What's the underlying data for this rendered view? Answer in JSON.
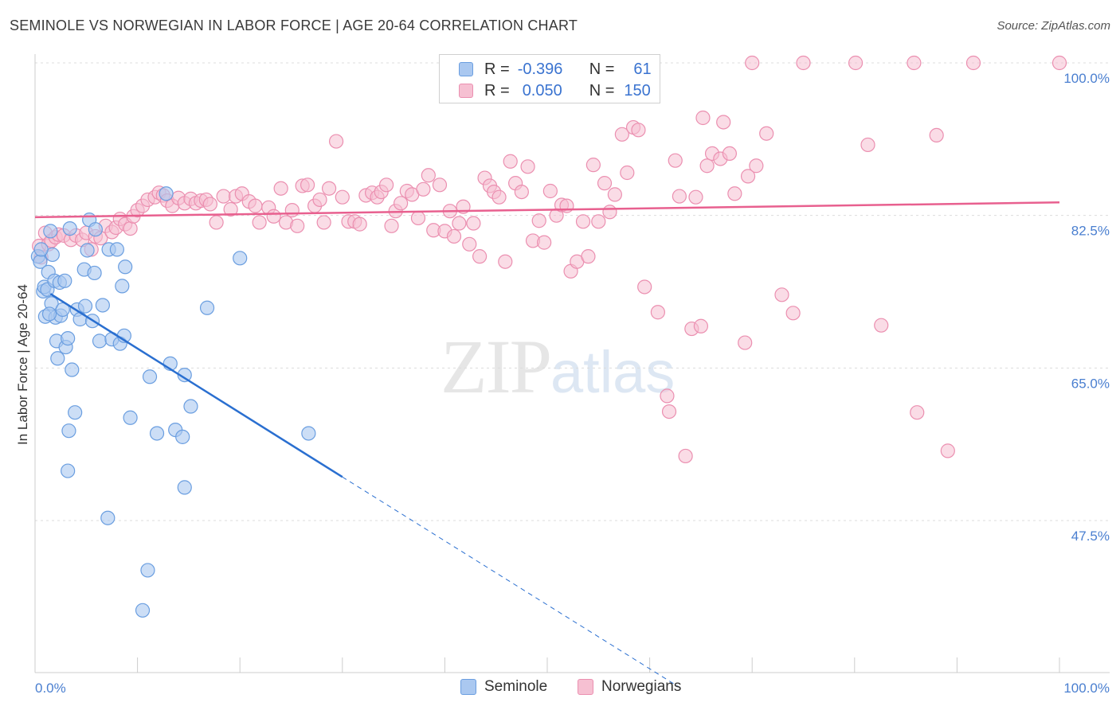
{
  "title": "SEMINOLE VS NORWEGIAN IN LABOR FORCE | AGE 20-64 CORRELATION CHART",
  "source": "Source: ZipAtlas.com",
  "watermark": {
    "zip": "ZIP",
    "atlas": "atlas"
  },
  "legend": {
    "r_label": "R =",
    "n_label": "N =",
    "rows": [
      {
        "series": "Seminole",
        "r": "-0.396",
        "n": "61"
      },
      {
        "series": "Norwegians",
        "r": "0.050",
        "n": "150"
      }
    ]
  },
  "colors": {
    "seminole_fill": "#aac8f0",
    "seminole_stroke": "#6a9ee0",
    "seminole_line": "#2a6fd0",
    "norwegian_fill": "#f6c0d2",
    "norwegian_stroke": "#eb8fb0",
    "norwegian_line": "#e8608f",
    "tick_text": "#4a7fd0"
  },
  "chart_data": {
    "type": "scatter",
    "title": "SEMINOLE VS NORWEGIAN IN LABOR FORCE | AGE 20-64 CORRELATION CHART",
    "xlabel": "",
    "ylabel": "In Labor Force | Age 20-64",
    "xlim": [
      0,
      100
    ],
    "ylim": [
      29.5,
      102
    ],
    "x_tick_labels": [
      "0.0%",
      "100.0%"
    ],
    "y_ticks": [
      47.5,
      65.0,
      82.5,
      100.0
    ],
    "y_tick_labels": [
      "47.5%",
      "65.0%",
      "82.5%",
      "100.0%"
    ],
    "grid": true,
    "legend_position": "bottom-center",
    "series": [
      {
        "name": "Seminole",
        "trend": {
          "x0": 1.5,
          "y0": 73.5,
          "x1": 30.0,
          "y1": 52.5,
          "dashed_to_x": 63.0,
          "dashed_to_y": 28.3
        },
        "points": [
          [
            0.3,
            77.8
          ],
          [
            0.5,
            77.2
          ],
          [
            0.8,
            73.8
          ],
          [
            0.9,
            74.3
          ],
          [
            1.0,
            70.9
          ],
          [
            1.2,
            74.0
          ],
          [
            1.3,
            76.0
          ],
          [
            1.5,
            80.7
          ],
          [
            1.6,
            72.4
          ],
          [
            1.7,
            78.0
          ],
          [
            1.9,
            75.0
          ],
          [
            2.0,
            70.8
          ],
          [
            2.1,
            68.1
          ],
          [
            2.2,
            66.1
          ],
          [
            2.4,
            74.8
          ],
          [
            2.5,
            71.0
          ],
          [
            2.7,
            71.7
          ],
          [
            2.9,
            75.0
          ],
          [
            3.0,
            67.4
          ],
          [
            3.2,
            68.4
          ],
          [
            3.4,
            81.0
          ],
          [
            3.6,
            64.8
          ],
          [
            3.9,
            59.9
          ],
          [
            4.1,
            71.7
          ],
          [
            4.4,
            70.6
          ],
          [
            4.8,
            76.3
          ],
          [
            5.1,
            78.5
          ],
          [
            5.3,
            82.0
          ],
          [
            5.6,
            70.4
          ],
          [
            5.8,
            75.9
          ],
          [
            5.9,
            80.9
          ],
          [
            6.3,
            68.1
          ],
          [
            6.6,
            72.2
          ],
          [
            7.2,
            78.6
          ],
          [
            7.5,
            68.3
          ],
          [
            8.0,
            78.6
          ],
          [
            8.3,
            67.8
          ],
          [
            8.5,
            74.4
          ],
          [
            8.7,
            68.7
          ],
          [
            8.8,
            76.6
          ],
          [
            9.3,
            59.3
          ],
          [
            10.5,
            37.2
          ],
          [
            11.0,
            41.8
          ],
          [
            11.2,
            64.0
          ],
          [
            11.9,
            57.5
          ],
          [
            12.8,
            85.0
          ],
          [
            13.2,
            65.5
          ],
          [
            13.7,
            57.9
          ],
          [
            14.4,
            57.1
          ],
          [
            14.6,
            64.2
          ],
          [
            15.2,
            60.6
          ],
          [
            14.6,
            51.3
          ],
          [
            16.8,
            71.9
          ],
          [
            20.0,
            77.6
          ],
          [
            26.7,
            57.5
          ],
          [
            3.2,
            53.2
          ],
          [
            3.3,
            57.8
          ],
          [
            7.1,
            47.8
          ],
          [
            4.9,
            72.1
          ],
          [
            0.6,
            78.6
          ],
          [
            1.4,
            71.2
          ]
        ]
      },
      {
        "name": "Norwegians",
        "trend": {
          "x0": 0,
          "y0": 82.3,
          "x1": 100,
          "y1": 84.0
        },
        "points": [
          [
            0.4,
            79.0
          ],
          [
            0.6,
            77.7
          ],
          [
            1.0,
            80.5
          ],
          [
            1.3,
            79.2
          ],
          [
            1.6,
            79.6
          ],
          [
            2.0,
            80.0
          ],
          [
            2.3,
            80.3
          ],
          [
            2.8,
            80.2
          ],
          [
            3.5,
            79.7
          ],
          [
            4.0,
            80.2
          ],
          [
            4.6,
            79.7
          ],
          [
            5.0,
            80.5
          ],
          [
            5.5,
            78.6
          ],
          [
            5.9,
            80.1
          ],
          [
            6.4,
            79.9
          ],
          [
            6.9,
            81.3
          ],
          [
            7.5,
            80.6
          ],
          [
            7.9,
            81.1
          ],
          [
            8.3,
            82.1
          ],
          [
            8.8,
            81.5
          ],
          [
            9.3,
            81.0
          ],
          [
            9.6,
            82.4
          ],
          [
            10.0,
            83.1
          ],
          [
            10.5,
            83.6
          ],
          [
            11.0,
            84.3
          ],
          [
            11.7,
            84.6
          ],
          [
            12.1,
            85.1
          ],
          [
            12.5,
            84.8
          ],
          [
            12.9,
            84.2
          ],
          [
            13.4,
            83.6
          ],
          [
            14.0,
            84.5
          ],
          [
            14.6,
            83.9
          ],
          [
            15.2,
            84.4
          ],
          [
            15.7,
            83.9
          ],
          [
            16.2,
            84.2
          ],
          [
            16.7,
            84.3
          ],
          [
            17.1,
            83.8
          ],
          [
            17.7,
            81.7
          ],
          [
            18.4,
            84.7
          ],
          [
            19.1,
            83.2
          ],
          [
            19.6,
            84.7
          ],
          [
            20.2,
            85.0
          ],
          [
            20.9,
            84.1
          ],
          [
            21.5,
            83.6
          ],
          [
            21.9,
            81.7
          ],
          [
            22.8,
            83.4
          ],
          [
            23.3,
            82.4
          ],
          [
            24.0,
            85.6
          ],
          [
            24.5,
            81.7
          ],
          [
            25.1,
            83.1
          ],
          [
            25.6,
            81.3
          ],
          [
            26.1,
            85.9
          ],
          [
            26.6,
            86.0
          ],
          [
            27.3,
            83.6
          ],
          [
            27.8,
            84.3
          ],
          [
            28.2,
            81.7
          ],
          [
            28.7,
            85.6
          ],
          [
            29.4,
            91.0
          ],
          [
            30.0,
            84.6
          ],
          [
            30.6,
            81.8
          ],
          [
            31.2,
            81.8
          ],
          [
            31.7,
            81.5
          ],
          [
            32.3,
            84.8
          ],
          [
            32.9,
            85.1
          ],
          [
            33.4,
            84.6
          ],
          [
            33.8,
            85.2
          ],
          [
            34.3,
            86.0
          ],
          [
            34.8,
            81.3
          ],
          [
            35.2,
            83.0
          ],
          [
            35.7,
            83.9
          ],
          [
            36.3,
            85.3
          ],
          [
            36.8,
            84.9
          ],
          [
            37.4,
            82.2
          ],
          [
            37.9,
            85.5
          ],
          [
            38.4,
            87.1
          ],
          [
            38.9,
            80.8
          ],
          [
            39.5,
            86.0
          ],
          [
            40.0,
            80.7
          ],
          [
            40.5,
            83.0
          ],
          [
            40.9,
            80.1
          ],
          [
            41.4,
            81.6
          ],
          [
            41.8,
            83.5
          ],
          [
            42.4,
            79.2
          ],
          [
            42.8,
            81.6
          ],
          [
            43.4,
            77.8
          ],
          [
            43.9,
            86.8
          ],
          [
            44.4,
            85.9
          ],
          [
            44.8,
            85.2
          ],
          [
            45.3,
            84.6
          ],
          [
            45.9,
            77.2
          ],
          [
            46.4,
            88.7
          ],
          [
            46.9,
            86.2
          ],
          [
            47.5,
            85.2
          ],
          [
            48.1,
            88.1
          ],
          [
            48.6,
            79.6
          ],
          [
            49.2,
            81.9
          ],
          [
            49.7,
            79.4
          ],
          [
            50.3,
            85.3
          ],
          [
            50.9,
            82.5
          ],
          [
            51.4,
            83.7
          ],
          [
            51.9,
            83.6
          ],
          [
            52.3,
            76.1
          ],
          [
            52.9,
            77.2
          ],
          [
            53.5,
            81.8
          ],
          [
            54.0,
            77.8
          ],
          [
            54.5,
            88.3
          ],
          [
            55.0,
            81.8
          ],
          [
            55.6,
            86.2
          ],
          [
            56.1,
            82.9
          ],
          [
            56.6,
            84.9
          ],
          [
            57.3,
            91.8
          ],
          [
            57.8,
            87.4
          ],
          [
            58.4,
            92.6
          ],
          [
            58.9,
            92.3
          ],
          [
            59.5,
            74.3
          ],
          [
            60.8,
            71.4
          ],
          [
            61.7,
            61.8
          ],
          [
            61.9,
            60.0
          ],
          [
            62.5,
            88.8
          ],
          [
            62.9,
            84.7
          ],
          [
            63.5,
            54.9
          ],
          [
            64.1,
            69.5
          ],
          [
            64.5,
            84.6
          ],
          [
            65.0,
            69.8
          ],
          [
            65.2,
            93.7
          ],
          [
            65.6,
            88.2
          ],
          [
            66.1,
            89.6
          ],
          [
            66.9,
            89.0
          ],
          [
            67.2,
            93.2
          ],
          [
            67.8,
            89.6
          ],
          [
            68.3,
            85.0
          ],
          [
            69.3,
            67.9
          ],
          [
            69.6,
            87.0
          ],
          [
            70.4,
            88.2
          ],
          [
            71.4,
            91.9
          ],
          [
            72.9,
            73.4
          ],
          [
            74.0,
            71.3
          ],
          [
            75.0,
            100.0
          ],
          [
            80.1,
            100.0
          ],
          [
            81.3,
            90.6
          ],
          [
            82.6,
            69.9
          ],
          [
            86.1,
            59.9
          ],
          [
            88.0,
            91.7
          ],
          [
            89.1,
            55.5
          ],
          [
            91.6,
            100.0
          ],
          [
            100.0,
            100.0
          ],
          [
            70.0,
            100.0
          ],
          [
            85.8,
            100.0
          ]
        ]
      }
    ]
  }
}
